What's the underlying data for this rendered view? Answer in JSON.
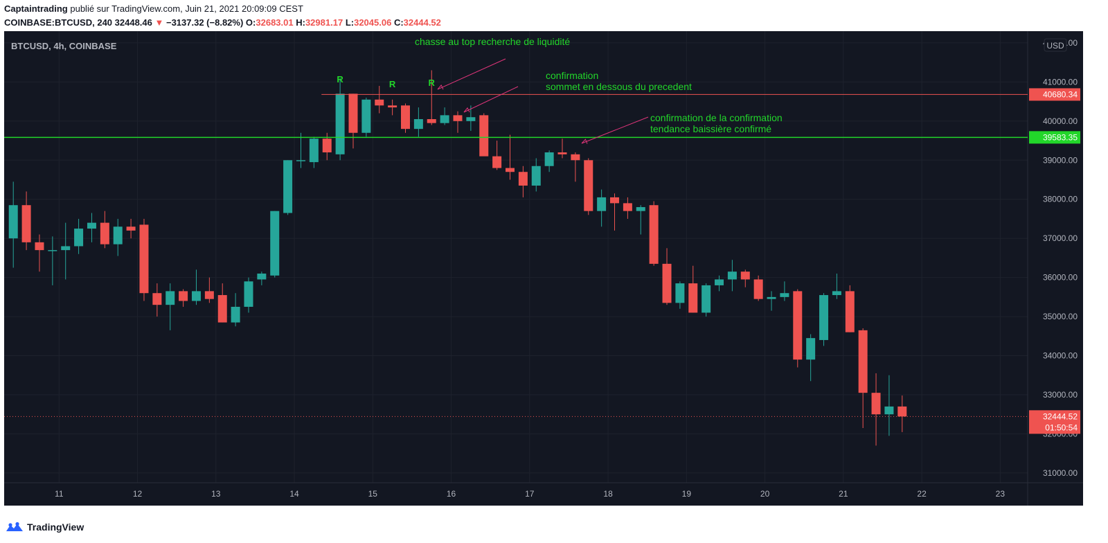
{
  "header": {
    "author": "Captaintrading",
    "published": "publié sur TradingView.com, Juin 21, 2021 20:09:09 CEST",
    "symbol": "COINBASE:BTCUSD, 240",
    "last": "32448.46",
    "change": "−3137.32 (−8.82%)",
    "o_label": "O:",
    "o_value": "32683.01",
    "h_label": "H:",
    "h_value": "32981.17",
    "l_label": "L:",
    "l_value": "32045.06",
    "c_label": "C:",
    "c_value": "32444.52"
  },
  "footer": {
    "brand": "TradingView"
  },
  "colors": {
    "background": "#131722",
    "grid": "#1e222d",
    "text": "#b2b5be",
    "up": "#26a69a",
    "down": "#ef5350",
    "support": "#22d62a",
    "annotation": "#22d62a",
    "arrow": "#e0357a",
    "resistance": "#ef5350"
  },
  "chart_data": {
    "type": "candlestick",
    "title": "BTCUSD, 4h, COINBASE",
    "currency": "USD",
    "ylim": [
      30750,
      42300
    ],
    "yticks": [
      31000,
      32000,
      33000,
      34000,
      35000,
      36000,
      37000,
      38000,
      39000,
      40000,
      41000,
      42000
    ],
    "ytick_labels": [
      "31000.00",
      "32000.00",
      "33000.00",
      "34000.00",
      "35000.00",
      "36000.00",
      "37000.00",
      "38000.00",
      "39000.00",
      "40000.00",
      "41000.00",
      "42000.00"
    ],
    "x_start_day": 10.3,
    "x_end_day": 23.35,
    "x_ticks": [
      "11",
      "12",
      "13",
      "14",
      "15",
      "16",
      "17",
      "18",
      "19",
      "20",
      "21",
      "22",
      "23"
    ],
    "candle_hours": 4,
    "candles": [
      [
        37000,
        38450,
        36250,
        37850
      ],
      [
        37850,
        38200,
        36700,
        36900
      ],
      [
        36900,
        37100,
        36150,
        36700
      ],
      [
        36700,
        37050,
        35800,
        36700
      ],
      [
        36700,
        37400,
        35950,
        36800
      ],
      [
        36800,
        37500,
        36600,
        37250
      ],
      [
        37250,
        37650,
        36900,
        37400
      ],
      [
        37400,
        37700,
        36750,
        36850
      ],
      [
        36850,
        37500,
        36550,
        37300
      ],
      [
        37300,
        37500,
        37000,
        37200
      ],
      [
        37350,
        37500,
        35400,
        35600
      ],
      [
        35600,
        35850,
        35000,
        35300
      ],
      [
        35300,
        35850,
        34650,
        35650
      ],
      [
        35650,
        35700,
        35250,
        35400
      ],
      [
        35400,
        36200,
        35300,
        35650
      ],
      [
        35650,
        36000,
        35350,
        35450
      ],
      [
        35550,
        35850,
        34850,
        34850
      ],
      [
        34850,
        35600,
        34750,
        35250
      ],
      [
        35250,
        36000,
        35100,
        35900
      ],
      [
        35950,
        36150,
        35800,
        36100
      ],
      [
        36050,
        37700,
        36000,
        37700
      ],
      [
        37650,
        39000,
        37600,
        39000
      ],
      [
        39000,
        39700,
        38800,
        39000
      ],
      [
        38950,
        39600,
        38800,
        39550
      ],
      [
        39550,
        39700,
        39000,
        39200
      ],
      [
        39150,
        41100,
        39000,
        40700
      ],
      [
        40700,
        40700,
        39300,
        39700
      ],
      [
        39700,
        40600,
        39600,
        40550
      ],
      [
        40550,
        40900,
        40200,
        40400
      ],
      [
        40400,
        40550,
        40150,
        40350
      ],
      [
        40400,
        40450,
        39700,
        39800
      ],
      [
        39800,
        40350,
        39600,
        40050
      ],
      [
        40050,
        41300,
        39900,
        39950
      ],
      [
        39950,
        40350,
        39900,
        40150
      ],
      [
        40150,
        40250,
        39700,
        40000
      ],
      [
        40000,
        40400,
        39750,
        40100
      ],
      [
        40150,
        40200,
        39150,
        39100
      ],
      [
        39100,
        39500,
        38750,
        38800
      ],
      [
        38800,
        39650,
        38500,
        38700
      ],
      [
        38700,
        38850,
        38050,
        38350
      ],
      [
        38350,
        39050,
        38200,
        38850
      ],
      [
        38850,
        39250,
        38700,
        39200
      ],
      [
        39200,
        39550,
        39050,
        39150
      ],
      [
        39150,
        39200,
        38450,
        39000
      ],
      [
        39000,
        39050,
        37600,
        37700
      ],
      [
        37700,
        38250,
        37300,
        38050
      ],
      [
        38050,
        38150,
        37200,
        37900
      ],
      [
        37900,
        38050,
        37500,
        37700
      ],
      [
        37700,
        37850,
        37100,
        37800
      ],
      [
        37850,
        37950,
        36300,
        36350
      ],
      [
        36350,
        36750,
        35300,
        35350
      ],
      [
        35350,
        35900,
        35200,
        35850
      ],
      [
        35850,
        36300,
        35100,
        35100
      ],
      [
        35100,
        35850,
        35000,
        35800
      ],
      [
        35800,
        36050,
        35650,
        35950
      ],
      [
        35950,
        36450,
        35650,
        36150
      ],
      [
        36150,
        36200,
        35750,
        35950
      ],
      [
        35950,
        36050,
        35400,
        35450
      ],
      [
        35450,
        35650,
        35150,
        35500
      ],
      [
        35500,
        35900,
        35400,
        35600
      ],
      [
        35650,
        35700,
        33700,
        33900
      ],
      [
        33900,
        34550,
        33350,
        34450
      ],
      [
        34400,
        35600,
        34250,
        35550
      ],
      [
        35550,
        36100,
        35450,
        35650
      ],
      [
        35650,
        35800,
        34600,
        34600
      ],
      [
        34650,
        34700,
        32150,
        33050
      ],
      [
        33050,
        33550,
        31700,
        32500
      ],
      [
        32500,
        33500,
        31950,
        32700
      ],
      [
        32700,
        32981.17,
        32045.06,
        32444.52
      ]
    ],
    "resistance": {
      "value": 40680.34,
      "label": "40680.34",
      "start_index": 24
    },
    "support": {
      "value": 39583.35,
      "label": "39583.35"
    },
    "current_price": {
      "value": 32444.52,
      "label": "32444.52",
      "countdown": "01:50:54"
    },
    "annotations": [
      {
        "text": "chasse au top recherche de liquidité"
      },
      {
        "text": "confirmation"
      },
      {
        "text": "sommet en dessous du precedent"
      },
      {
        "text": "confirmation de la confirmation"
      },
      {
        "text": "tendance baissière confirmé"
      }
    ],
    "markers": [
      "R",
      "R",
      "R"
    ]
  }
}
